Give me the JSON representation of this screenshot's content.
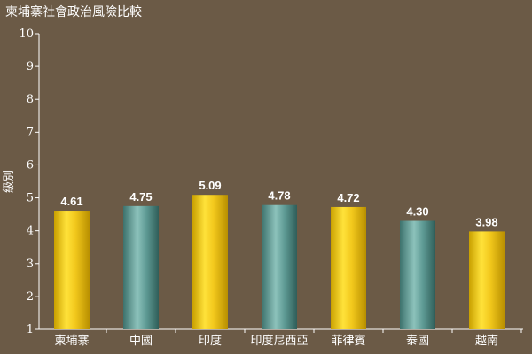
{
  "chart_data": {
    "type": "bar",
    "title": "柬埔寨社會政治風險比較",
    "ylabel": "級別",
    "xlabel": "",
    "ylim": [
      1,
      10
    ],
    "yticks": [
      1,
      2,
      3,
      4,
      5,
      6,
      7,
      8,
      9,
      10
    ],
    "categories": [
      "柬埔寨",
      "中國",
      "印度",
      "印度尼西亞",
      "菲律賓",
      "泰國",
      "越南"
    ],
    "values": [
      4.61,
      4.75,
      5.09,
      4.78,
      4.72,
      4.3,
      3.98
    ],
    "value_labels": [
      "4.61",
      "4.75",
      "5.09",
      "4.78",
      "4.72",
      "4.30",
      "3.98"
    ],
    "bar_colors": [
      "gold",
      "teal",
      "gold",
      "teal",
      "gold",
      "teal",
      "gold"
    ],
    "colors": {
      "background": "#6b5a46",
      "gold": "#f2c81c",
      "teal": "#5e9a94",
      "axis": "#ffffff",
      "text": "#ffffff"
    },
    "grid": false,
    "legend": "none"
  }
}
